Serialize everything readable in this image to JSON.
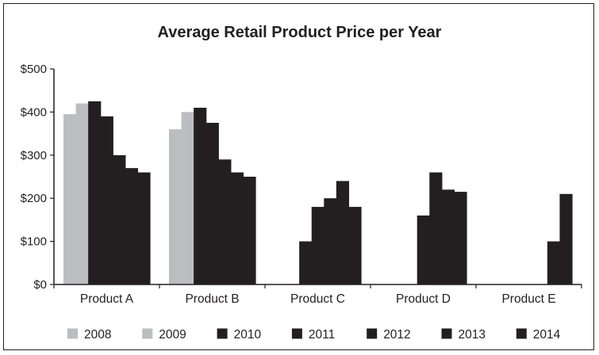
{
  "chart_data": {
    "type": "bar",
    "title": "Average Retail Product Price per Year",
    "xlabel": "",
    "ylabel": "",
    "ylim": [
      0,
      500
    ],
    "yticks": [
      0,
      100,
      200,
      300,
      400,
      500
    ],
    "ytick_labels": [
      "$0",
      "$100",
      "$200",
      "$300",
      "$400",
      "$500"
    ],
    "categories": [
      "Product A",
      "Product B",
      "Product C",
      "Product D",
      "Product E"
    ],
    "series": [
      {
        "name": "2008",
        "color": "#bcbdc0",
        "values": [
          395,
          360,
          null,
          null,
          null
        ]
      },
      {
        "name": "2009",
        "color": "#bcbdc0",
        "values": [
          420,
          400,
          null,
          null,
          null
        ]
      },
      {
        "name": "2010",
        "color": "#231f20",
        "values": [
          425,
          410,
          100,
          null,
          null
        ]
      },
      {
        "name": "2011",
        "color": "#231f20",
        "values": [
          390,
          375,
          180,
          160,
          null
        ]
      },
      {
        "name": "2012",
        "color": "#231f20",
        "values": [
          300,
          290,
          200,
          260,
          null
        ]
      },
      {
        "name": "2013",
        "color": "#231f20",
        "values": [
          270,
          260,
          240,
          220,
          100
        ]
      },
      {
        "name": "2014",
        "color": "#231f20",
        "values": [
          260,
          250,
          180,
          215,
          210
        ]
      }
    ],
    "grid": false,
    "legend_position": "bottom"
  }
}
